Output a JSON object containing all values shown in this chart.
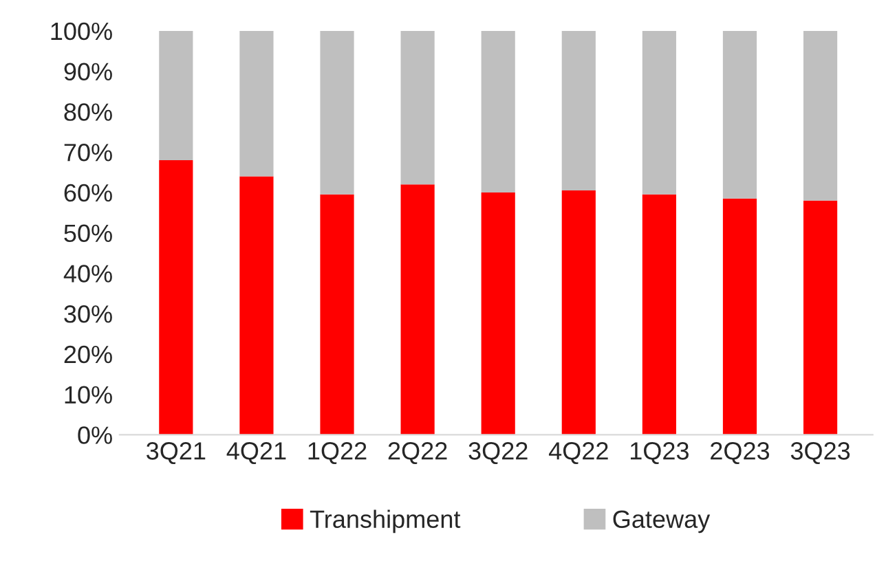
{
  "chart_data": {
    "type": "bar",
    "stacked": true,
    "categories": [
      "3Q21",
      "4Q21",
      "1Q22",
      "2Q22",
      "3Q22",
      "4Q22",
      "1Q23",
      "2Q23",
      "3Q23"
    ],
    "series": [
      {
        "name": "Transhipment",
        "color": "#ff0000",
        "values": [
          68,
          64,
          59.5,
          62,
          60,
          60.5,
          59.5,
          58.5,
          58
        ]
      },
      {
        "name": "Gateway",
        "color": "#bfbfbf",
        "values": [
          32,
          36,
          40.5,
          38,
          40,
          39.5,
          40.5,
          41.5,
          42
        ]
      }
    ],
    "ylim": [
      0,
      100
    ],
    "yticks": [
      {
        "value": 0,
        "label": "0%"
      },
      {
        "value": 10,
        "label": "10%"
      },
      {
        "value": 20,
        "label": "20%"
      },
      {
        "value": 30,
        "label": "30%"
      },
      {
        "value": 40,
        "label": "40%"
      },
      {
        "value": 50,
        "label": "50%"
      },
      {
        "value": 60,
        "label": "60%"
      },
      {
        "value": 70,
        "label": "70%"
      },
      {
        "value": 80,
        "label": "80%"
      },
      {
        "value": 90,
        "label": "90%"
      },
      {
        "value": 100,
        "label": "100%"
      }
    ],
    "legend": "bottom"
  }
}
